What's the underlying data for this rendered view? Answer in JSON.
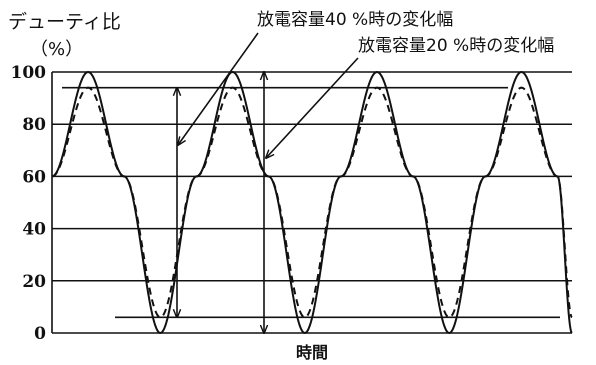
{
  "chart_data": {
    "type": "line",
    "ylabel": "デューティ比",
    "yunit": "（%）",
    "xlabel": "時間",
    "ylim": [
      0,
      100
    ],
    "yticks": [
      0,
      20,
      40,
      60,
      80,
      100
    ],
    "grid": true,
    "series": [
      {
        "line_style": "solid",
        "color": "#111111",
        "x": [
          0,
          0.25,
          0.5,
          0.75,
          1,
          1.25,
          1.5,
          1.75,
          2,
          2.25,
          2.5,
          2.75,
          3,
          3.25,
          3.5,
          3.6
        ],
        "y": [
          60,
          100,
          60,
          0,
          60,
          100,
          60,
          0,
          60,
          100,
          60,
          0,
          60,
          100,
          60,
          0
        ]
      },
      {
        "line_style": "dashed",
        "color": "#111111",
        "x": [
          0,
          0.25,
          0.5,
          0.75,
          1,
          1.25,
          1.5,
          1.75,
          2,
          2.25,
          2.5,
          2.75,
          3,
          3.25,
          3.5,
          3.6
        ],
        "y": [
          60,
          94,
          60,
          6,
          60,
          94,
          60,
          6,
          60,
          94,
          60,
          6,
          60,
          94,
          60,
          6
        ]
      }
    ],
    "reference_lines": [
      {
        "y": 94
      },
      {
        "y": 6
      }
    ],
    "annotations": [
      {
        "text": "放電容量40 %時の変化幅",
        "range": [
          6,
          94
        ]
      },
      {
        "text": "放電容量20 %時の変化幅",
        "range": [
          0,
          100
        ]
      }
    ]
  }
}
